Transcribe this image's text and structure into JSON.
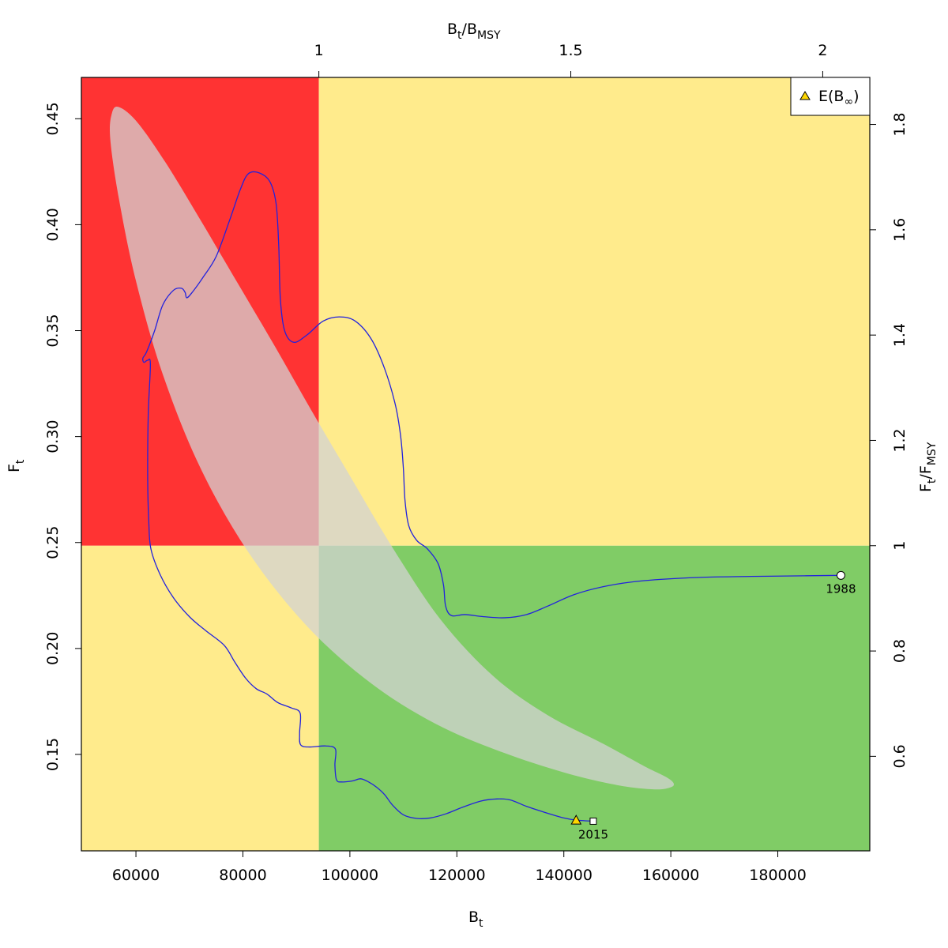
{
  "chart_data": {
    "type": "line",
    "xlabel": {
      "main": "B",
      "sub": "t"
    },
    "ylabel": {
      "main": "F",
      "sub": "t"
    },
    "top_label": {
      "main": "B",
      "sub1": "t",
      "slash": "/B",
      "sub2": "MSY"
    },
    "right_label": {
      "main": "F",
      "sub1": "t",
      "slash": "/F",
      "sub2": "MSY"
    },
    "xlim": [
      49800,
      197200
    ],
    "ylim": [
      0.1045,
      0.4695
    ],
    "xticks": [
      60000,
      80000,
      100000,
      120000,
      140000,
      160000,
      180000
    ],
    "xtick_labels": [
      "60000",
      "80000",
      "100000",
      "120000",
      "140000",
      "160000",
      "180000"
    ],
    "yticks": [
      0.15,
      0.2,
      0.25,
      0.3,
      0.35,
      0.4,
      0.45
    ],
    "ytick_labels": [
      "0.15",
      "0.20",
      "0.25",
      "0.30",
      "0.35",
      "0.40",
      "0.45"
    ],
    "bmsy": 94200,
    "fmsy": 0.2485,
    "top_ticks": [
      1,
      1.5,
      2
    ],
    "top_tick_labels": [
      "1",
      "1.5",
      "2"
    ],
    "right_ticks": [
      0.6,
      0.8,
      1,
      1.2,
      1.4,
      1.6,
      1.8
    ],
    "right_tick_labels": [
      "0.6",
      "0.8",
      "1",
      "1.2",
      "1.4",
      "1.6",
      "1.8"
    ],
    "grid": false,
    "colors": {
      "red_zone": "#ff3333",
      "yellow_zone": "#ffeb8c",
      "green_zone": "#80cc66",
      "ellipse": "#d3d3d3",
      "trajectory": "#2222dd",
      "triangle": "#ffd700"
    },
    "legend": {
      "position": "top-right",
      "label_main": "E(B",
      "label_sub": "∞",
      "label_end": ")"
    },
    "start_point": {
      "x": 191800,
      "y": 0.2345,
      "label": "1988"
    },
    "end_point": {
      "x": 145500,
      "y": 0.1185,
      "label": "2015"
    },
    "expected_equilibrium": {
      "x": 142300,
      "y": 0.119
    },
    "confidence_region": [
      [
        56800,
        0.4555
      ],
      [
        60200,
        0.4485
      ],
      [
        65500,
        0.4295
      ],
      [
        72000,
        0.4025
      ],
      [
        79000,
        0.3725
      ],
      [
        86000,
        0.3425
      ],
      [
        93000,
        0.3115
      ],
      [
        100000,
        0.2815
      ],
      [
        108000,
        0.2475
      ],
      [
        117000,
        0.2135
      ],
      [
        127000,
        0.1865
      ],
      [
        137000,
        0.1685
      ],
      [
        147000,
        0.1555
      ],
      [
        155000,
        0.1445
      ],
      [
        159000,
        0.1395
      ],
      [
        160500,
        0.1365
      ],
      [
        160000,
        0.1345
      ],
      [
        157000,
        0.1335
      ],
      [
        150000,
        0.1355
      ],
      [
        140000,
        0.1415
      ],
      [
        128000,
        0.1515
      ],
      [
        116000,
        0.1645
      ],
      [
        104000,
        0.1835
      ],
      [
        92000,
        0.2105
      ],
      [
        81000,
        0.2455
      ],
      [
        72000,
        0.2855
      ],
      [
        65000,
        0.3295
      ],
      [
        60000,
        0.3735
      ],
      [
        56800,
        0.4125
      ],
      [
        55200,
        0.4405
      ],
      [
        55500,
        0.4525
      ]
    ],
    "trajectory": [
      [
        191800,
        0.2345
      ],
      [
        185000,
        0.2343
      ],
      [
        175000,
        0.234
      ],
      [
        165000,
        0.2335
      ],
      [
        155000,
        0.232
      ],
      [
        148000,
        0.2295
      ],
      [
        142000,
        0.2255
      ],
      [
        137000,
        0.22
      ],
      [
        133000,
        0.216
      ],
      [
        129000,
        0.2145
      ],
      [
        125000,
        0.215
      ],
      [
        121500,
        0.216
      ],
      [
        119000,
        0.2155
      ],
      [
        117900,
        0.22
      ],
      [
        117500,
        0.23
      ],
      [
        116500,
        0.24
      ],
      [
        114500,
        0.247
      ],
      [
        112500,
        0.251
      ],
      [
        111000,
        0.258
      ],
      [
        110300,
        0.27
      ],
      [
        110000,
        0.285
      ],
      [
        109500,
        0.3
      ],
      [
        108500,
        0.315
      ],
      [
        106500,
        0.332
      ],
      [
        104000,
        0.346
      ],
      [
        101000,
        0.3545
      ],
      [
        98000,
        0.3565
      ],
      [
        95000,
        0.3545
      ],
      [
        92000,
        0.348
      ],
      [
        89500,
        0.3445
      ],
      [
        87800,
        0.35
      ],
      [
        87000,
        0.365
      ],
      [
        86700,
        0.39
      ],
      [
        86200,
        0.41
      ],
      [
        85000,
        0.4205
      ],
      [
        83000,
        0.4245
      ],
      [
        81000,
        0.424
      ],
      [
        79500,
        0.4165
      ],
      [
        77500,
        0.402
      ],
      [
        75000,
        0.385
      ],
      [
        72500,
        0.375
      ],
      [
        70500,
        0.368
      ],
      [
        69500,
        0.3655
      ],
      [
        69200,
        0.368
      ],
      [
        68500,
        0.37
      ],
      [
        67000,
        0.369
      ],
      [
        65000,
        0.362
      ],
      [
        63500,
        0.35
      ],
      [
        62000,
        0.34
      ],
      [
        61300,
        0.337
      ],
      [
        61500,
        0.335
      ],
      [
        62200,
        0.336
      ],
      [
        62700,
        0.334
      ],
      [
        62300,
        0.31
      ],
      [
        62200,
        0.28
      ],
      [
        62400,
        0.26
      ],
      [
        62800,
        0.247
      ],
      [
        64500,
        0.235
      ],
      [
        67000,
        0.224
      ],
      [
        70000,
        0.215
      ],
      [
        73000,
        0.2085
      ],
      [
        76500,
        0.2015
      ],
      [
        78500,
        0.1935
      ],
      [
        80500,
        0.186
      ],
      [
        82500,
        0.181
      ],
      [
        84500,
        0.1785
      ],
      [
        86500,
        0.1745
      ],
      [
        89000,
        0.172
      ],
      [
        90700,
        0.1695
      ],
      [
        90600,
        0.16
      ],
      [
        90800,
        0.1545
      ],
      [
        92500,
        0.1535
      ],
      [
        95500,
        0.154
      ],
      [
        97300,
        0.1525
      ],
      [
        97200,
        0.145
      ],
      [
        97500,
        0.138
      ],
      [
        98500,
        0.137
      ],
      [
        100500,
        0.1375
      ],
      [
        102000,
        0.1385
      ],
      [
        103500,
        0.137
      ],
      [
        105000,
        0.1345
      ],
      [
        106500,
        0.131
      ],
      [
        108000,
        0.126
      ],
      [
        110000,
        0.1215
      ],
      [
        112500,
        0.1198
      ],
      [
        115000,
        0.12
      ],
      [
        118000,
        0.122
      ],
      [
        121000,
        0.125
      ],
      [
        124500,
        0.128
      ],
      [
        127500,
        0.129
      ],
      [
        130000,
        0.1285
      ],
      [
        133000,
        0.1255
      ],
      [
        136000,
        0.123
      ],
      [
        140000,
        0.12
      ],
      [
        142300,
        0.119
      ],
      [
        145500,
        0.1185
      ]
    ]
  }
}
